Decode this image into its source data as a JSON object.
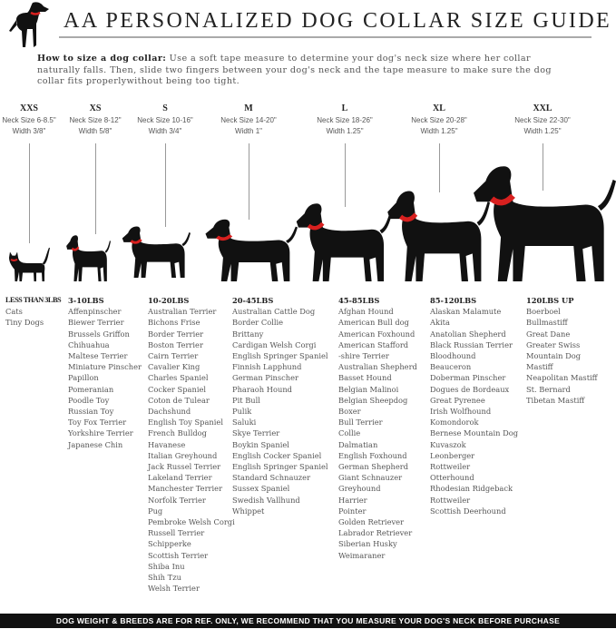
{
  "header": {
    "logo": "black dog with red collar",
    "title": "AA PERSONALIZED DOG COLLAR SIZE GUIDE",
    "howto_label": "How to size a dog collar:",
    "howto_text": " Use a soft tape measure to determine your dog's neck size where her collar naturally falls. Then, slide two fingers between your dog's neck and the tape measure to make sure the dog collar fits properlywithout being too tight."
  },
  "colors": {
    "collar": "#d8201f",
    "silhouette": "#111111",
    "footer_bg": "#111111"
  },
  "sizes": [
    {
      "code": "XXS",
      "neck": "Neck Size 6-8.5\"",
      "width": "Width 3/8\""
    },
    {
      "code": "XS",
      "neck": "Neck Size 8-12\"",
      "width": "Width 5/8\""
    },
    {
      "code": "S",
      "neck": "Neck Size 10-16\"",
      "width": "Width 3/4\""
    },
    {
      "code": "M",
      "neck": "Neck Size 14-20\"",
      "width": "Width 1\""
    },
    {
      "code": "L",
      "neck": "Neck Size 18-26\"",
      "width": "Width 1.25\""
    },
    {
      "code": "XL",
      "neck": "Neck Size 20-28\"",
      "width": "Width 1.25\""
    },
    {
      "code": "XXL",
      "neck": "Neck Size 22-30\"",
      "width": "Width 1.25\""
    }
  ],
  "columns": [
    {
      "heading": "LESS THAN 3LBS",
      "items": [
        "Cats",
        "Tiny Dogs"
      ]
    },
    {
      "heading": "3-10LBS",
      "items": [
        "Affenpinscher",
        "Biewer Terrier",
        "Brussels Griffon",
        "Chihuahua",
        "Maltese Terrier",
        "Miniature Pinscher",
        "Papillon",
        "Pomeranian",
        "Poodle Toy",
        "Russian Toy",
        "Toy Fox Terrier",
        "Yorkshire Terrier",
        "Japanese Chin"
      ]
    },
    {
      "heading": "10-20LBS",
      "items": [
        "Australian Terrier",
        "Bichons Frise",
        "Border Terrier",
        "Boston Terrier",
        "Cairn Terrier",
        "Cavalier King",
        "Charles Spaniel",
        "Cocker Spaniel",
        "Coton de Tulear",
        "Dachshund",
        "English Toy Spaniel",
        "French Bulldog",
        "Havanese",
        "Italian Greyhound",
        "Jack Russel Terrier",
        "Lakeland Terrier",
        "Manchester Terrier",
        "Norfolk Terrier",
        "Pug",
        "Pembroke Welsh Corgi",
        "Russell Terrier",
        "Schipperke",
        "Scottish Terrier",
        "Shiba Inu",
        "Shih Tzu",
        "Welsh Terrier"
      ]
    },
    {
      "heading": "20-45LBS",
      "items": [
        "Australian Cattle Dog",
        "Border Collie",
        "Brittany",
        "Cardigan Welsh Corgi",
        "English Springer Spaniel",
        "Finnish Lapphund",
        "German Pinscher",
        "Pharaoh Hound",
        "Pit Bull",
        "Pulik",
        "Saluki",
        "Skye Terrier",
        "Boykin Spaniel",
        "English Cocker Spaniel",
        "English Springer Spaniel",
        "Standard Schnauzer",
        "Sussex Spaniel",
        "Swedish Vallhund",
        "Whippet"
      ]
    },
    {
      "heading": "45-85LBS",
      "items": [
        "Afghan Hound",
        "American Bull dog",
        "American Foxhound",
        "American Stafford",
        "-shire Terrier",
        "Australian Shepherd",
        "Basset Hound",
        "Belgian Malinoi",
        "Belgian Sheepdog",
        "Boxer",
        "Bull Terrier",
        "Collie",
        "Dalmatian",
        "English Foxhound",
        "German Shepherd",
        "Giant Schnauzer",
        "Greyhound",
        "Harrier",
        "Pointer",
        "Golden Retriever",
        "Labrador Retriever",
        "Siberian Husky",
        "Weimaraner"
      ]
    },
    {
      "heading": "85-120LBS",
      "items": [
        "Alaskan Malamute",
        "Akita",
        "Anatolian Shepherd",
        "Black Russian Terrier",
        "Bloodhound",
        "Beauceron",
        "Doberman Pinscher",
        "Dogues de Bordeaux",
        "Great Pyrenee",
        "Irish Wolfhound",
        "Komondorok",
        "Bernese Mountain Dog",
        "Kuvaszok",
        "Leonberger",
        "Rottweiler",
        "Otterhound",
        "Rhodesian Ridgeback",
        "Rottweiler",
        "Scottish Deerhound"
      ]
    },
    {
      "heading": "120LBS UP",
      "items": [
        "Boerboel",
        "Bullmastiff",
        "Great Dane",
        "Greater Swiss",
        "Mountain Dog",
        "Mastiff",
        "Neapolitan Mastiff",
        "St. Bernard",
        "Tibetan Mastiff"
      ]
    }
  ],
  "footer": "DOG WEIGHT & BREEDS ARE FOR REF. ONLY, WE RECOMMEND THAT YOU MEASURE YOUR DOG'S NECK BEFORE PURCHASE"
}
